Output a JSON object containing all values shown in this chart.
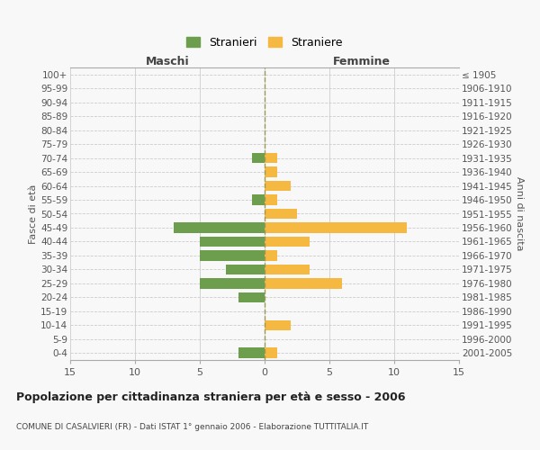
{
  "age_groups": [
    "100+",
    "95-99",
    "90-94",
    "85-89",
    "80-84",
    "75-79",
    "70-74",
    "65-69",
    "60-64",
    "55-59",
    "50-54",
    "45-49",
    "40-44",
    "35-39",
    "30-34",
    "25-29",
    "20-24",
    "15-19",
    "10-14",
    "5-9",
    "0-4"
  ],
  "birth_years": [
    "≤ 1905",
    "1906-1910",
    "1911-1915",
    "1916-1920",
    "1921-1925",
    "1926-1930",
    "1931-1935",
    "1936-1940",
    "1941-1945",
    "1946-1950",
    "1951-1955",
    "1956-1960",
    "1961-1965",
    "1966-1970",
    "1971-1975",
    "1976-1980",
    "1981-1985",
    "1986-1990",
    "1991-1995",
    "1996-2000",
    "2001-2005"
  ],
  "males": [
    0,
    0,
    0,
    0,
    0,
    0,
    -1,
    0,
    0,
    -1,
    0,
    -7,
    -5,
    -5,
    -3,
    -5,
    -2,
    0,
    0,
    0,
    -2
  ],
  "females": [
    0,
    0,
    0,
    0,
    0,
    0,
    1,
    1,
    2,
    1,
    2.5,
    11,
    3.5,
    1,
    3.5,
    6,
    0,
    0,
    2,
    0,
    1
  ],
  "color_male": "#6d9e4e",
  "color_female": "#f5b942",
  "xlim": 15,
  "title": "Popolazione per cittadinanza straniera per età e sesso - 2006",
  "subtitle": "COMUNE DI CASALVIERI (FR) - Dati ISTAT 1° gennaio 2006 - Elaborazione TUTTITALIA.IT",
  "ylabel_left": "Fasce di età",
  "ylabel_right": "Anni di nascita",
  "label_male": "Stranieri",
  "label_female": "Straniere",
  "header_left": "Maschi",
  "header_right": "Femmine",
  "bg_color": "#f8f8f8",
  "grid_color": "#cccccc",
  "spine_color": "#cccccc"
}
